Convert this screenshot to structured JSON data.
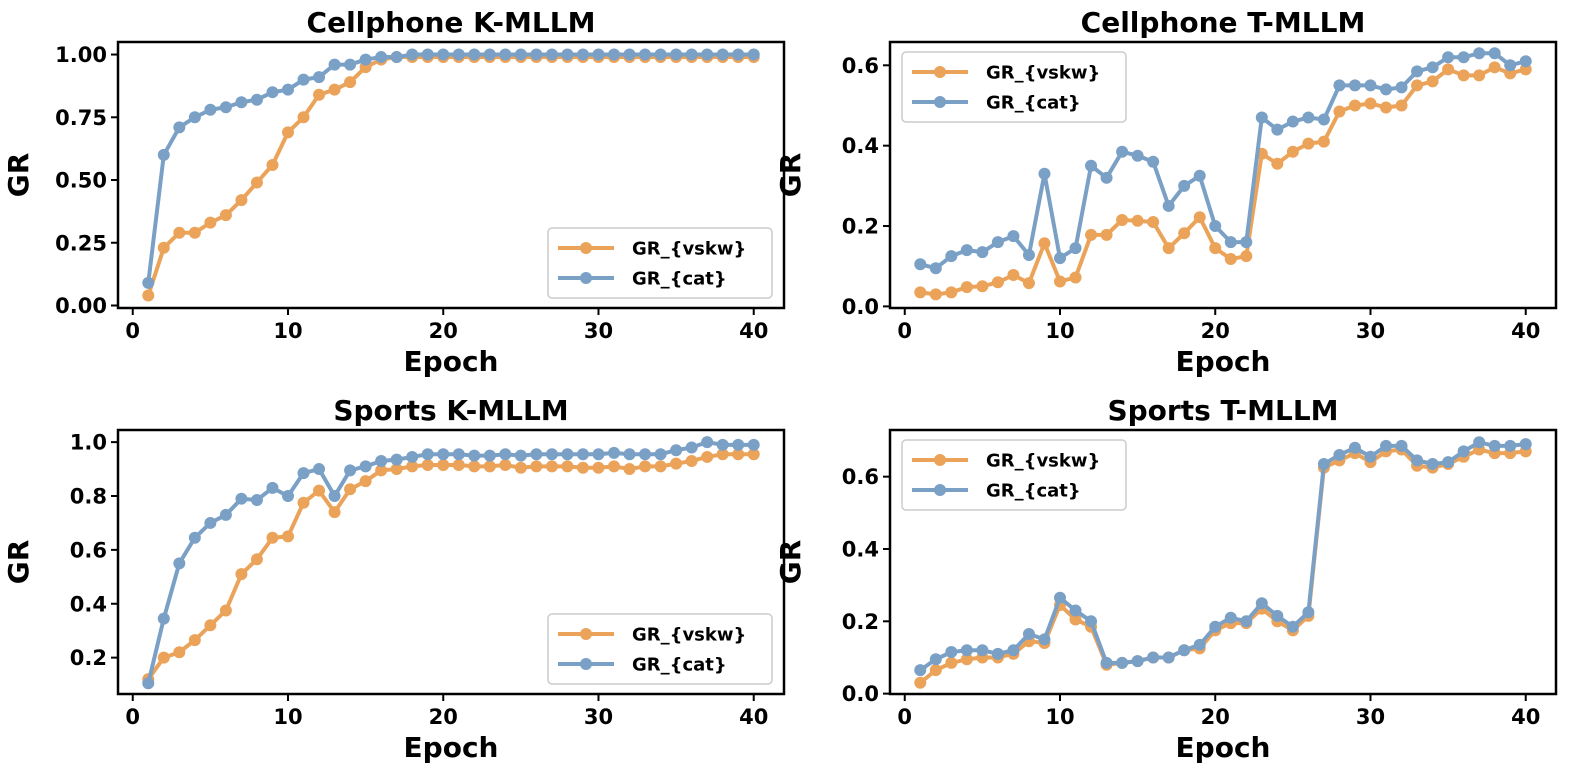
{
  "chart_data": [
    {
      "type": "line",
      "title": "Cellphone K-MLLM",
      "xlabel": "Epoch",
      "ylabel": "GR",
      "xlim": [
        -0.95,
        41.95
      ],
      "ylim": [
        -0.01,
        1.05
      ],
      "xticks": [
        0,
        10,
        20,
        30,
        40
      ],
      "yticks": [
        0.0,
        0.25,
        0.5,
        0.75,
        1.0
      ],
      "ytick_labels": [
        "0.00",
        "0.25",
        "0.50",
        "0.75",
        "1.00"
      ],
      "legend_position": "lower-right",
      "grid": false,
      "x": [
        1,
        2,
        3,
        4,
        5,
        6,
        7,
        8,
        9,
        10,
        11,
        12,
        13,
        14,
        15,
        16,
        17,
        18,
        19,
        20,
        21,
        22,
        23,
        24,
        25,
        26,
        27,
        28,
        29,
        30,
        31,
        32,
        33,
        34,
        35,
        36,
        37,
        38,
        39,
        40
      ],
      "series": [
        {
          "name": "GR_{vskw}",
          "color": "#eba35a",
          "values": [
            0.04,
            0.23,
            0.29,
            0.29,
            0.33,
            0.36,
            0.42,
            0.49,
            0.56,
            0.69,
            0.75,
            0.84,
            0.86,
            0.89,
            0.95,
            0.98,
            0.99,
            0.99,
            0.99,
            0.99,
            0.99,
            0.99,
            0.99,
            0.99,
            0.99,
            0.99,
            0.99,
            0.99,
            0.99,
            0.99,
            0.99,
            0.99,
            0.99,
            0.99,
            0.99,
            0.99,
            0.99,
            0.99,
            0.99,
            0.99
          ]
        },
        {
          "name": "GR_{cat}",
          "color": "#7aa0c6",
          "values": [
            0.09,
            0.6,
            0.71,
            0.75,
            0.78,
            0.79,
            0.81,
            0.82,
            0.85,
            0.86,
            0.9,
            0.91,
            0.96,
            0.96,
            0.98,
            0.99,
            0.99,
            1.0,
            1.0,
            1.0,
            1.0,
            1.0,
            1.0,
            1.0,
            1.0,
            1.0,
            1.0,
            1.0,
            1.0,
            1.0,
            1.0,
            1.0,
            1.0,
            1.0,
            1.0,
            1.0,
            1.0,
            1.0,
            1.0,
            1.0
          ]
        }
      ]
    },
    {
      "type": "line",
      "title": "Cellphone T-MLLM",
      "xlabel": "Epoch",
      "ylabel": "GR",
      "xlim": [
        -0.95,
        41.95
      ],
      "ylim": [
        -0.004,
        0.658
      ],
      "xticks": [
        0,
        10,
        20,
        30,
        40
      ],
      "yticks": [
        0.0,
        0.2,
        0.4,
        0.6
      ],
      "ytick_labels": [
        "0.0",
        "0.2",
        "0.4",
        "0.6"
      ],
      "legend_position": "upper-left",
      "grid": false,
      "x": [
        1,
        2,
        3,
        4,
        5,
        6,
        7,
        8,
        9,
        10,
        11,
        12,
        13,
        14,
        15,
        16,
        17,
        18,
        19,
        20,
        21,
        22,
        23,
        24,
        25,
        26,
        27,
        28,
        29,
        30,
        31,
        32,
        33,
        34,
        35,
        36,
        37,
        38,
        39,
        40
      ],
      "series": [
        {
          "name": "GR_{vskw}",
          "color": "#eba35a",
          "values": [
            0.035,
            0.03,
            0.035,
            0.048,
            0.05,
            0.06,
            0.078,
            0.058,
            0.157,
            0.062,
            0.072,
            0.178,
            0.178,
            0.215,
            0.213,
            0.21,
            0.145,
            0.182,
            0.222,
            0.145,
            0.118,
            0.125,
            0.38,
            0.355,
            0.385,
            0.405,
            0.41,
            0.485,
            0.5,
            0.505,
            0.495,
            0.5,
            0.55,
            0.56,
            0.59,
            0.575,
            0.575,
            0.595,
            0.58,
            0.59
          ]
        },
        {
          "name": "GR_{cat}",
          "color": "#7aa0c6",
          "values": [
            0.105,
            0.095,
            0.125,
            0.14,
            0.135,
            0.16,
            0.175,
            0.128,
            0.33,
            0.12,
            0.145,
            0.35,
            0.32,
            0.385,
            0.375,
            0.36,
            0.25,
            0.3,
            0.325,
            0.2,
            0.16,
            0.16,
            0.47,
            0.44,
            0.46,
            0.47,
            0.465,
            0.55,
            0.55,
            0.55,
            0.54,
            0.545,
            0.585,
            0.595,
            0.62,
            0.62,
            0.63,
            0.63,
            0.6,
            0.61
          ]
        }
      ]
    },
    {
      "type": "line",
      "title": "Sports K-MLLM",
      "xlabel": "Epoch",
      "ylabel": "GR",
      "xlim": [
        -0.95,
        41.95
      ],
      "ylim": [
        0.065,
        1.045
      ],
      "xticks": [
        0,
        10,
        20,
        30,
        40
      ],
      "yticks": [
        0.2,
        0.4,
        0.6,
        0.8,
        1.0
      ],
      "ytick_labels": [
        "0.2",
        "0.4",
        "0.6",
        "0.8",
        "1.0"
      ],
      "legend_position": "lower-right",
      "grid": false,
      "x": [
        1,
        2,
        3,
        4,
        5,
        6,
        7,
        8,
        9,
        10,
        11,
        12,
        13,
        14,
        15,
        16,
        17,
        18,
        19,
        20,
        21,
        22,
        23,
        24,
        25,
        26,
        27,
        28,
        29,
        30,
        31,
        32,
        33,
        34,
        35,
        36,
        37,
        38,
        39,
        40
      ],
      "series": [
        {
          "name": "GR_{vskw}",
          "color": "#eba35a",
          "values": [
            0.12,
            0.2,
            0.22,
            0.265,
            0.32,
            0.375,
            0.51,
            0.565,
            0.645,
            0.65,
            0.775,
            0.82,
            0.74,
            0.825,
            0.855,
            0.895,
            0.9,
            0.91,
            0.915,
            0.915,
            0.915,
            0.91,
            0.91,
            0.915,
            0.905,
            0.91,
            0.91,
            0.91,
            0.905,
            0.905,
            0.91,
            0.9,
            0.91,
            0.91,
            0.92,
            0.93,
            0.945,
            0.955,
            0.955,
            0.955
          ]
        },
        {
          "name": "GR_{cat}",
          "color": "#7aa0c6",
          "values": [
            0.105,
            0.345,
            0.55,
            0.645,
            0.7,
            0.73,
            0.79,
            0.785,
            0.83,
            0.8,
            0.885,
            0.9,
            0.8,
            0.895,
            0.91,
            0.93,
            0.935,
            0.945,
            0.955,
            0.955,
            0.955,
            0.95,
            0.95,
            0.955,
            0.95,
            0.955,
            0.955,
            0.955,
            0.955,
            0.955,
            0.96,
            0.955,
            0.955,
            0.955,
            0.97,
            0.98,
            1.0,
            0.99,
            0.99,
            0.99
          ]
        }
      ]
    },
    {
      "type": "line",
      "title": "Sports T-MLLM",
      "xlabel": "Epoch",
      "ylabel": "GR",
      "xlim": [
        -0.95,
        41.95
      ],
      "ylim": [
        -0.001,
        0.729
      ],
      "xticks": [
        0,
        10,
        20,
        30,
        40
      ],
      "yticks": [
        0.0,
        0.2,
        0.4,
        0.6
      ],
      "ytick_labels": [
        "0.0",
        "0.2",
        "0.4",
        "0.6"
      ],
      "legend_position": "upper-left",
      "grid": false,
      "x": [
        1,
        2,
        3,
        4,
        5,
        6,
        7,
        8,
        9,
        10,
        11,
        12,
        13,
        14,
        15,
        16,
        17,
        18,
        19,
        20,
        21,
        22,
        23,
        24,
        25,
        26,
        27,
        28,
        29,
        30,
        31,
        32,
        33,
        34,
        35,
        36,
        37,
        38,
        39,
        40
      ],
      "series": [
        {
          "name": "GR_{vskw}",
          "color": "#eba35a",
          "values": [
            0.03,
            0.065,
            0.085,
            0.095,
            0.1,
            0.1,
            0.11,
            0.145,
            0.14,
            0.245,
            0.205,
            0.185,
            0.08,
            0.085,
            0.09,
            0.1,
            0.1,
            0.12,
            0.125,
            0.175,
            0.195,
            0.195,
            0.235,
            0.2,
            0.175,
            0.215,
            0.625,
            0.645,
            0.665,
            0.64,
            0.67,
            0.675,
            0.63,
            0.625,
            0.635,
            0.655,
            0.675,
            0.665,
            0.665,
            0.67
          ]
        },
        {
          "name": "GR_{cat}",
          "color": "#7aa0c6",
          "values": [
            0.065,
            0.095,
            0.115,
            0.12,
            0.12,
            0.11,
            0.12,
            0.165,
            0.15,
            0.265,
            0.23,
            0.2,
            0.085,
            0.085,
            0.09,
            0.1,
            0.1,
            0.12,
            0.135,
            0.185,
            0.21,
            0.2,
            0.25,
            0.215,
            0.185,
            0.225,
            0.635,
            0.66,
            0.68,
            0.655,
            0.685,
            0.685,
            0.645,
            0.635,
            0.64,
            0.67,
            0.695,
            0.685,
            0.685,
            0.69
          ]
        }
      ]
    }
  ]
}
